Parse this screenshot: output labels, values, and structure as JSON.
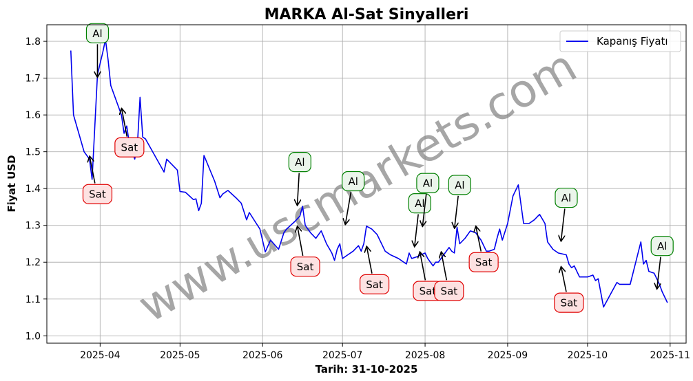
{
  "chart_data": {
    "type": "line",
    "title": "MARKA Al-Sat Sinyalleri",
    "xlabel": "Tarih: 31-10-2025",
    "ylabel": "Fiyat USD",
    "watermark": "www.uscmarkets.com",
    "x_range": [
      "2025-03-12",
      "2025-11-07"
    ],
    "y_range": [
      0.98,
      1.845
    ],
    "x_ticks": [
      "2025-04-01",
      "2025-05-01",
      "2025-06-01",
      "2025-07-01",
      "2025-08-01",
      "2025-09-01",
      "2025-10-01",
      "2025-11-01"
    ],
    "x_tick_labels": [
      "2025-04",
      "2025-05",
      "2025-06",
      "2025-07",
      "2025-08",
      "2025-09",
      "2025-10",
      "2025-11"
    ],
    "y_ticks": [
      1.0,
      1.1,
      1.2,
      1.3,
      1.4,
      1.5,
      1.6,
      1.7,
      1.8
    ],
    "y_tick_labels": [
      "1.0",
      "1.1",
      "1.2",
      "1.3",
      "1.4",
      "1.5",
      "1.6",
      "1.7",
      "1.8"
    ],
    "grid": true,
    "legend_position": "top-right",
    "colors": {
      "line": "#0000ee",
      "buy": "#008000",
      "buy_fill": "#ebf5eb",
      "sell": "#e00000",
      "sell_fill": "#fde2e2",
      "grid": "#b0b0b0",
      "watermark": "#808080"
    },
    "series": [
      {
        "name": "Kapanış Fiyatı",
        "points": [
          [
            "2025-03-21",
            1.775
          ],
          [
            "2025-03-22",
            1.6
          ],
          [
            "2025-03-24",
            1.55
          ],
          [
            "2025-03-26",
            1.5
          ],
          [
            "2025-03-28",
            1.48
          ],
          [
            "2025-03-29",
            1.425
          ],
          [
            "2025-03-31",
            1.71
          ],
          [
            "2025-04-02",
            1.77
          ],
          [
            "2025-04-03",
            1.805
          ],
          [
            "2025-04-04",
            1.75
          ],
          [
            "2025-04-05",
            1.68
          ],
          [
            "2025-04-08",
            1.62
          ],
          [
            "2025-04-09",
            1.6
          ],
          [
            "2025-04-10",
            1.55
          ],
          [
            "2025-04-11",
            1.57
          ],
          [
            "2025-04-12",
            1.52
          ],
          [
            "2025-04-14",
            1.48
          ],
          [
            "2025-04-15",
            1.52
          ],
          [
            "2025-04-16",
            1.648
          ],
          [
            "2025-04-17",
            1.54
          ],
          [
            "2025-04-18",
            1.535
          ],
          [
            "2025-04-25",
            1.445
          ],
          [
            "2025-04-26",
            1.48
          ],
          [
            "2025-04-30",
            1.45
          ],
          [
            "2025-05-01",
            1.392
          ],
          [
            "2025-05-03",
            1.39
          ],
          [
            "2025-05-06",
            1.37
          ],
          [
            "2025-05-07",
            1.372
          ],
          [
            "2025-05-08",
            1.34
          ],
          [
            "2025-05-09",
            1.36
          ],
          [
            "2025-05-10",
            1.49
          ],
          [
            "2025-05-14",
            1.42
          ],
          [
            "2025-05-16",
            1.375
          ],
          [
            "2025-05-17",
            1.385
          ],
          [
            "2025-05-19",
            1.395
          ],
          [
            "2025-05-22",
            1.375
          ],
          [
            "2025-05-24",
            1.36
          ],
          [
            "2025-05-26",
            1.315
          ],
          [
            "2025-05-27",
            1.335
          ],
          [
            "2025-05-31",
            1.29
          ],
          [
            "2025-06-02",
            1.228
          ],
          [
            "2025-06-04",
            1.26
          ],
          [
            "2025-06-07",
            1.235
          ],
          [
            "2025-06-09",
            1.28
          ],
          [
            "2025-06-10",
            1.29
          ],
          [
            "2025-06-13",
            1.31
          ],
          [
            "2025-06-15",
            1.325
          ],
          [
            "2025-06-16",
            1.352
          ],
          [
            "2025-06-17",
            1.3
          ],
          [
            "2025-06-19",
            1.28
          ],
          [
            "2025-06-21",
            1.265
          ],
          [
            "2025-06-23",
            1.285
          ],
          [
            "2025-06-25",
            1.25
          ],
          [
            "2025-06-27",
            1.225
          ],
          [
            "2025-06-28",
            1.205
          ],
          [
            "2025-06-29",
            1.235
          ],
          [
            "2025-06-30",
            1.25
          ],
          [
            "2025-07-01",
            1.21
          ],
          [
            "2025-07-03",
            1.22
          ],
          [
            "2025-07-05",
            1.23
          ],
          [
            "2025-07-07",
            1.245
          ],
          [
            "2025-07-08",
            1.23
          ],
          [
            "2025-07-09",
            1.25
          ],
          [
            "2025-07-10",
            1.298
          ],
          [
            "2025-07-12",
            1.29
          ],
          [
            "2025-07-14",
            1.275
          ],
          [
            "2025-07-17",
            1.23
          ],
          [
            "2025-07-19",
            1.22
          ],
          [
            "2025-07-22",
            1.21
          ],
          [
            "2025-07-25",
            1.195
          ],
          [
            "2025-07-26",
            1.225
          ],
          [
            "2025-07-27",
            1.21
          ],
          [
            "2025-07-29",
            1.215
          ],
          [
            "2025-08-01",
            1.225
          ],
          [
            "2025-08-02",
            1.21
          ],
          [
            "2025-08-04",
            1.19
          ],
          [
            "2025-08-05",
            1.2
          ],
          [
            "2025-08-06",
            1.2
          ],
          [
            "2025-08-08",
            1.22
          ],
          [
            "2025-08-10",
            1.24
          ],
          [
            "2025-08-11",
            1.23
          ],
          [
            "2025-08-12",
            1.225
          ],
          [
            "2025-08-13",
            1.295
          ],
          [
            "2025-08-14",
            1.25
          ],
          [
            "2025-08-16",
            1.265
          ],
          [
            "2025-08-18",
            1.285
          ],
          [
            "2025-08-20",
            1.28
          ],
          [
            "2025-08-22",
            1.26
          ],
          [
            "2025-08-24",
            1.23
          ],
          [
            "2025-08-25",
            1.23
          ],
          [
            "2025-08-27",
            1.235
          ],
          [
            "2025-08-28",
            1.265
          ],
          [
            "2025-08-29",
            1.29
          ],
          [
            "2025-08-30",
            1.26
          ],
          [
            "2025-09-01",
            1.305
          ],
          [
            "2025-09-03",
            1.38
          ],
          [
            "2025-09-05",
            1.41
          ],
          [
            "2025-09-07",
            1.305
          ],
          [
            "2025-09-09",
            1.305
          ],
          [
            "2025-09-11",
            1.315
          ],
          [
            "2025-09-13",
            1.33
          ],
          [
            "2025-09-15",
            1.305
          ],
          [
            "2025-09-16",
            1.255
          ],
          [
            "2025-09-18",
            1.235
          ],
          [
            "2025-09-20",
            1.225
          ],
          [
            "2025-09-23",
            1.22
          ],
          [
            "2025-09-24",
            1.195
          ],
          [
            "2025-09-25",
            1.185
          ],
          [
            "2025-09-26",
            1.19
          ],
          [
            "2025-09-28",
            1.16
          ],
          [
            "2025-09-29",
            1.16
          ],
          [
            "2025-10-01",
            1.16
          ],
          [
            "2025-10-03",
            1.165
          ],
          [
            "2025-10-04",
            1.15
          ],
          [
            "2025-10-05",
            1.155
          ],
          [
            "2025-10-07",
            1.078
          ],
          [
            "2025-10-09",
            1.105
          ],
          [
            "2025-10-12",
            1.145
          ],
          [
            "2025-10-13",
            1.14
          ],
          [
            "2025-10-15",
            1.14
          ],
          [
            "2025-10-17",
            1.14
          ],
          [
            "2025-10-21",
            1.255
          ],
          [
            "2025-10-22",
            1.195
          ],
          [
            "2025-10-23",
            1.205
          ],
          [
            "2025-10-24",
            1.175
          ],
          [
            "2025-10-26",
            1.17
          ],
          [
            "2025-10-28",
            1.14
          ],
          [
            "2025-10-29",
            1.12
          ],
          [
            "2025-10-31",
            1.09
          ]
        ]
      }
    ],
    "annotations": [
      {
        "type": "buy",
        "label": "Al",
        "date": "2025-03-31",
        "price": 1.7,
        "text_date": "2025-03-31",
        "text_price": 1.822
      },
      {
        "type": "sell",
        "label": "Sat",
        "date": "2025-03-28",
        "price": 1.49,
        "text_date": "2025-03-31",
        "text_price": 1.385
      },
      {
        "type": "sell",
        "label": "Sat",
        "date": "2025-04-09",
        "price": 1.62,
        "text_date": "2025-04-12",
        "text_price": 1.512
      },
      {
        "type": "buy",
        "label": "Al",
        "date": "2025-06-14",
        "price": 1.352,
        "text_date": "2025-06-15",
        "text_price": 1.472
      },
      {
        "type": "sell",
        "label": "Sat",
        "date": "2025-06-14",
        "price": 1.3,
        "text_date": "2025-06-17",
        "text_price": 1.188
      },
      {
        "type": "buy",
        "label": "Al",
        "date": "2025-07-02",
        "price": 1.3,
        "text_date": "2025-07-05",
        "text_price": 1.42
      },
      {
        "type": "sell",
        "label": "Sat",
        "date": "2025-07-10",
        "price": 1.245,
        "text_date": "2025-07-13",
        "text_price": 1.14
      },
      {
        "type": "buy",
        "label": "Al",
        "date": "2025-07-28",
        "price": 1.24,
        "text_date": "2025-07-30",
        "text_price": 1.36
      },
      {
        "type": "buy",
        "label": "Al",
        "date": "2025-07-31",
        "price": 1.295,
        "text_date": "2025-08-02",
        "text_price": 1.415
      },
      {
        "type": "sell",
        "label": "Sat",
        "date": "2025-07-30",
        "price": 1.23,
        "text_date": "2025-08-02",
        "text_price": 1.122
      },
      {
        "type": "sell",
        "label": "Sat",
        "date": "2025-08-07",
        "price": 1.23,
        "text_date": "2025-08-10",
        "text_price": 1.122
      },
      {
        "type": "buy",
        "label": "Al",
        "date": "2025-08-12",
        "price": 1.29,
        "text_date": "2025-08-14",
        "text_price": 1.41
      },
      {
        "type": "sell",
        "label": "Sat",
        "date": "2025-08-20",
        "price": 1.3,
        "text_date": "2025-08-23",
        "text_price": 1.2
      },
      {
        "type": "buy",
        "label": "Al",
        "date": "2025-09-21",
        "price": 1.255,
        "text_date": "2025-09-23",
        "text_price": 1.375
      },
      {
        "type": "sell",
        "label": "Sat",
        "date": "2025-09-21",
        "price": 1.19,
        "text_date": "2025-09-24",
        "text_price": 1.09
      },
      {
        "type": "buy",
        "label": "Al",
        "date": "2025-10-27",
        "price": 1.125,
        "text_date": "2025-10-29",
        "text_price": 1.244
      }
    ]
  }
}
